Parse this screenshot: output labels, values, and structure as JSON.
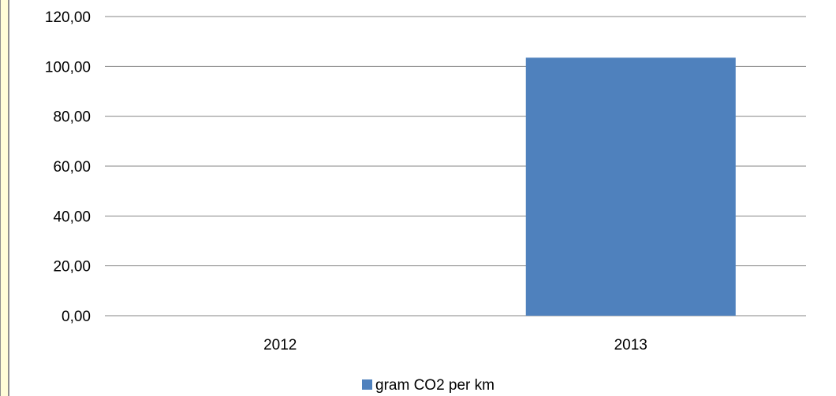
{
  "chart_data": {
    "type": "bar",
    "categories": [
      "2012",
      "2013"
    ],
    "series": [
      {
        "name": "gram CO2 per km",
        "values": [
          0,
          103.5
        ]
      }
    ],
    "ylim": [
      0,
      120
    ],
    "yticks": [
      "0,00",
      "20,00",
      "40,00",
      "60,00",
      "80,00",
      "100,00",
      "120,00"
    ],
    "ytick_values": [
      0,
      20,
      40,
      60,
      80,
      100,
      120
    ],
    "grid": true,
    "legend_position": "bottom",
    "bar_color": "#4f81bd",
    "gridline_color": "#868686"
  }
}
